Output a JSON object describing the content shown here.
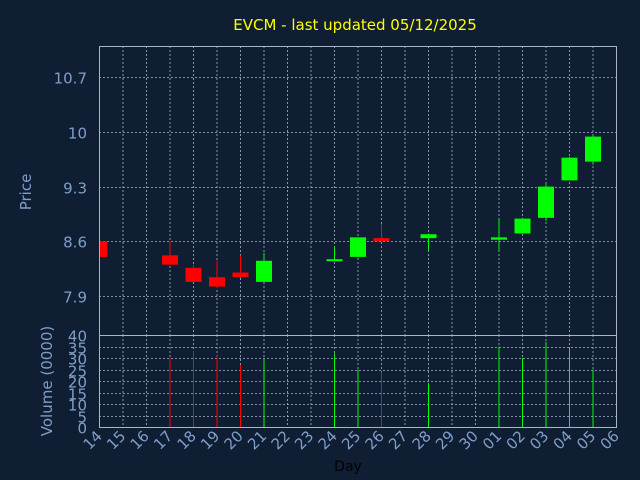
{
  "chart_data": {
    "type": "candlestick",
    "title": "EVCM - last updated 05/12/2025",
    "xlabel": "Day",
    "price_axis": {
      "label": "Price",
      "ylim": [
        7.4,
        11.1
      ],
      "ticks": [
        7.9,
        8.6,
        9.3,
        10,
        10.7
      ],
      "tick_labels": [
        "7.9",
        "8.6",
        "9.3",
        "10",
        "10.7"
      ]
    },
    "volume_axis": {
      "label": "Volume (0000)",
      "ylim": [
        0,
        40
      ],
      "ticks": [
        0,
        5,
        10,
        15,
        20,
        25,
        30,
        35,
        40
      ],
      "tick_labels": [
        "0",
        "5",
        "10",
        "15",
        "20",
        "25",
        "30",
        "35",
        "40"
      ]
    },
    "x_tick_labels": [
      "14",
      "15",
      "16",
      "17",
      "18",
      "19",
      "20",
      "21",
      "22",
      "23",
      "24",
      "25",
      "26",
      "27",
      "28",
      "29",
      "30",
      "01",
      "02",
      "03",
      "04",
      "05",
      "06"
    ],
    "candles": [
      {
        "day": "14",
        "open": 8.6,
        "high": 8.6,
        "low": 8.4,
        "close": 8.4,
        "volume": 0
      },
      {
        "day": "17",
        "open": 8.42,
        "high": 8.6,
        "low": 8.3,
        "close": 8.3,
        "volume": 30
      },
      {
        "day": "18",
        "open": 8.26,
        "high": 8.3,
        "low": 8.08,
        "close": 8.08,
        "volume": 33
      },
      {
        "day": "19",
        "open": 8.14,
        "high": 8.35,
        "low": 8.0,
        "close": 8.02,
        "volume": 31
      },
      {
        "day": "20",
        "open": 8.2,
        "high": 8.42,
        "low": 8.13,
        "close": 8.14,
        "volume": 27
      },
      {
        "day": "21",
        "open": 8.08,
        "high": 8.45,
        "low": 8.08,
        "close": 8.35,
        "volume": 29
      },
      {
        "day": "24",
        "open": 8.35,
        "high": 8.53,
        "low": 8.35,
        "close": 8.37,
        "volume": 32
      },
      {
        "day": "25",
        "open": 8.4,
        "high": 8.65,
        "low": 8.4,
        "close": 8.65,
        "volume": 25
      },
      {
        "day": "26",
        "open": 8.64,
        "high": 8.82,
        "low": 8.6,
        "close": 8.6,
        "volume": 24
      },
      {
        "day": "28",
        "open": 8.64,
        "high": 8.7,
        "low": 8.48,
        "close": 8.69,
        "volume": 19
      },
      {
        "day": "01",
        "open": 8.62,
        "high": 8.89,
        "low": 8.48,
        "close": 8.65,
        "volume": 35
      },
      {
        "day": "02",
        "open": 8.7,
        "high": 8.9,
        "low": 8.7,
        "close": 8.89,
        "volume": 30
      },
      {
        "day": "03",
        "open": 8.9,
        "high": 9.33,
        "low": 8.86,
        "close": 9.3,
        "volume": 37
      },
      {
        "day": "04",
        "open": 9.38,
        "high": 9.68,
        "low": 9.38,
        "close": 9.67,
        "volume": 34
      },
      {
        "day": "05",
        "open": 9.62,
        "high": 9.95,
        "low": 9.58,
        "close": 9.94,
        "volume": 25
      }
    ],
    "up_color": "#00ff00",
    "down_color": "#ff0000",
    "grid": true
  }
}
